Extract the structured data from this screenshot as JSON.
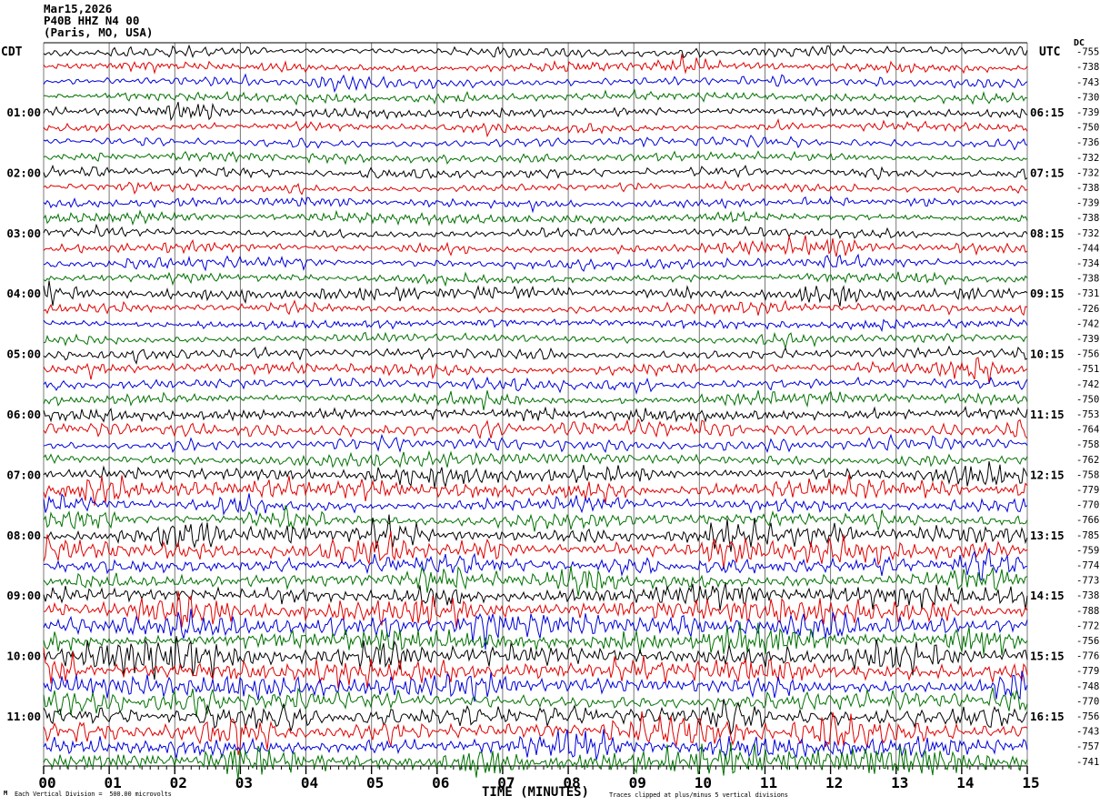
{
  "header": {
    "date": "Mar15,2026",
    "station": "P40B HHZ N4 00",
    "location": "(Paris, MO, USA)"
  },
  "axis": {
    "left_timezone": "CDT",
    "right_timezone": "UTC",
    "dc_column_label": "DC",
    "x_tick_labels": [
      "00",
      "01",
      "02",
      "03",
      "04",
      "05",
      "06",
      "07",
      "08",
      "09",
      "10",
      "11",
      "12",
      "13",
      "14",
      "15"
    ],
    "x_axis_label": "TIME (MINUTES)"
  },
  "footer": {
    "scale_note": "Each Vertical Division =  500.00 microvolts",
    "clip_note": "Traces clipped at plus/minus 5 vertical divisions",
    "corner_glyph": "M"
  },
  "chart_data": {
    "type": "line",
    "description": "Helicorder seismogram: 48 trace rows, 15 minutes per row, colors cycle black/red/blue/green; DC offset (microvolts) listed per row at right",
    "x_range_minutes": [
      0,
      15
    ],
    "minutes_per_row": 15,
    "minor_ticks_per_minute": 8,
    "vertical_division_microvolts": 500.0,
    "clip_divisions": 5,
    "trace_color_cycle": [
      "#000000",
      "#e00000",
      "#0000d8",
      "#007100"
    ],
    "grid_color": "#787878",
    "rows": [
      {
        "left": "",
        "right": "",
        "dc": -755,
        "amp": 4.5
      },
      {
        "left": "",
        "right": "",
        "dc": -738,
        "amp": 4.5
      },
      {
        "left": "",
        "right": "",
        "dc": -743,
        "amp": 4.5
      },
      {
        "left": "",
        "right": "",
        "dc": -730,
        "amp": 4.0
      },
      {
        "left": "01:00",
        "right": "06:15",
        "dc": -739,
        "amp": 4.5
      },
      {
        "left": "",
        "right": "",
        "dc": -750,
        "amp": 4.5
      },
      {
        "left": "",
        "right": "",
        "dc": -736,
        "amp": 4.0
      },
      {
        "left": "",
        "right": "",
        "dc": -732,
        "amp": 4.0
      },
      {
        "left": "02:00",
        "right": "07:15",
        "dc": -732,
        "amp": 4.5
      },
      {
        "left": "",
        "right": "",
        "dc": -738,
        "amp": 4.5
      },
      {
        "left": "",
        "right": "",
        "dc": -739,
        "amp": 4.0
      },
      {
        "left": "",
        "right": "",
        "dc": -738,
        "amp": 4.5
      },
      {
        "left": "03:00",
        "right": "08:15",
        "dc": -732,
        "amp": 4.5
      },
      {
        "left": "",
        "right": "",
        "dc": -744,
        "amp": 5.0
      },
      {
        "left": "",
        "right": "",
        "dc": -734,
        "amp": 4.5
      },
      {
        "left": "",
        "right": "",
        "dc": -738,
        "amp": 4.5
      },
      {
        "left": "04:00",
        "right": "09:15",
        "dc": -731,
        "amp": 5.0
      },
      {
        "left": "",
        "right": "",
        "dc": -726,
        "amp": 5.0
      },
      {
        "left": "",
        "right": "",
        "dc": -742,
        "amp": 4.5
      },
      {
        "left": "",
        "right": "",
        "dc": -739,
        "amp": 5.0
      },
      {
        "left": "05:00",
        "right": "10:15",
        "dc": -756,
        "amp": 5.0
      },
      {
        "left": "",
        "right": "",
        "dc": -751,
        "amp": 5.5
      },
      {
        "left": "",
        "right": "",
        "dc": -742,
        "amp": 5.0
      },
      {
        "left": "",
        "right": "",
        "dc": -750,
        "amp": 5.0
      },
      {
        "left": "06:00",
        "right": "11:15",
        "dc": -753,
        "amp": 5.5
      },
      {
        "left": "",
        "right": "",
        "dc": -764,
        "amp": 6.0
      },
      {
        "left": "",
        "right": "",
        "dc": -758,
        "amp": 5.5
      },
      {
        "left": "",
        "right": "",
        "dc": -762,
        "amp": 5.5
      },
      {
        "left": "07:00",
        "right": "12:15",
        "dc": -758,
        "amp": 6.0
      },
      {
        "left": "",
        "right": "",
        "dc": -779,
        "amp": 7.0
      },
      {
        "left": "",
        "right": "",
        "dc": -770,
        "amp": 6.0
      },
      {
        "left": "",
        "right": "",
        "dc": -766,
        "amp": 6.5
      },
      {
        "left": "08:00",
        "right": "13:15",
        "dc": -785,
        "amp": 8.0
      },
      {
        "left": "",
        "right": "",
        "dc": -759,
        "amp": 8.0
      },
      {
        "left": "",
        "right": "",
        "dc": -774,
        "amp": 7.0
      },
      {
        "left": "",
        "right": "",
        "dc": -773,
        "amp": 7.5
      },
      {
        "left": "09:00",
        "right": "14:15",
        "dc": -738,
        "amp": 9.0
      },
      {
        "left": "",
        "right": "",
        "dc": -788,
        "amp": 9.0
      },
      {
        "left": "",
        "right": "",
        "dc": -772,
        "amp": 8.0
      },
      {
        "left": "",
        "right": "",
        "dc": -756,
        "amp": 8.5
      },
      {
        "left": "10:00",
        "right": "15:15",
        "dc": -776,
        "amp": 10.0
      },
      {
        "left": "",
        "right": "",
        "dc": -779,
        "amp": 10.0
      },
      {
        "left": "",
        "right": "",
        "dc": -748,
        "amp": 9.0
      },
      {
        "left": "",
        "right": "",
        "dc": -770,
        "amp": 9.0
      },
      {
        "left": "11:00",
        "right": "16:15",
        "dc": -756,
        "amp": 9.0
      },
      {
        "left": "",
        "right": "",
        "dc": -743,
        "amp": 9.5
      },
      {
        "left": "",
        "right": "",
        "dc": -757,
        "amp": 8.5
      },
      {
        "left": "",
        "right": "",
        "dc": -741,
        "amp": 9.0
      }
    ]
  }
}
